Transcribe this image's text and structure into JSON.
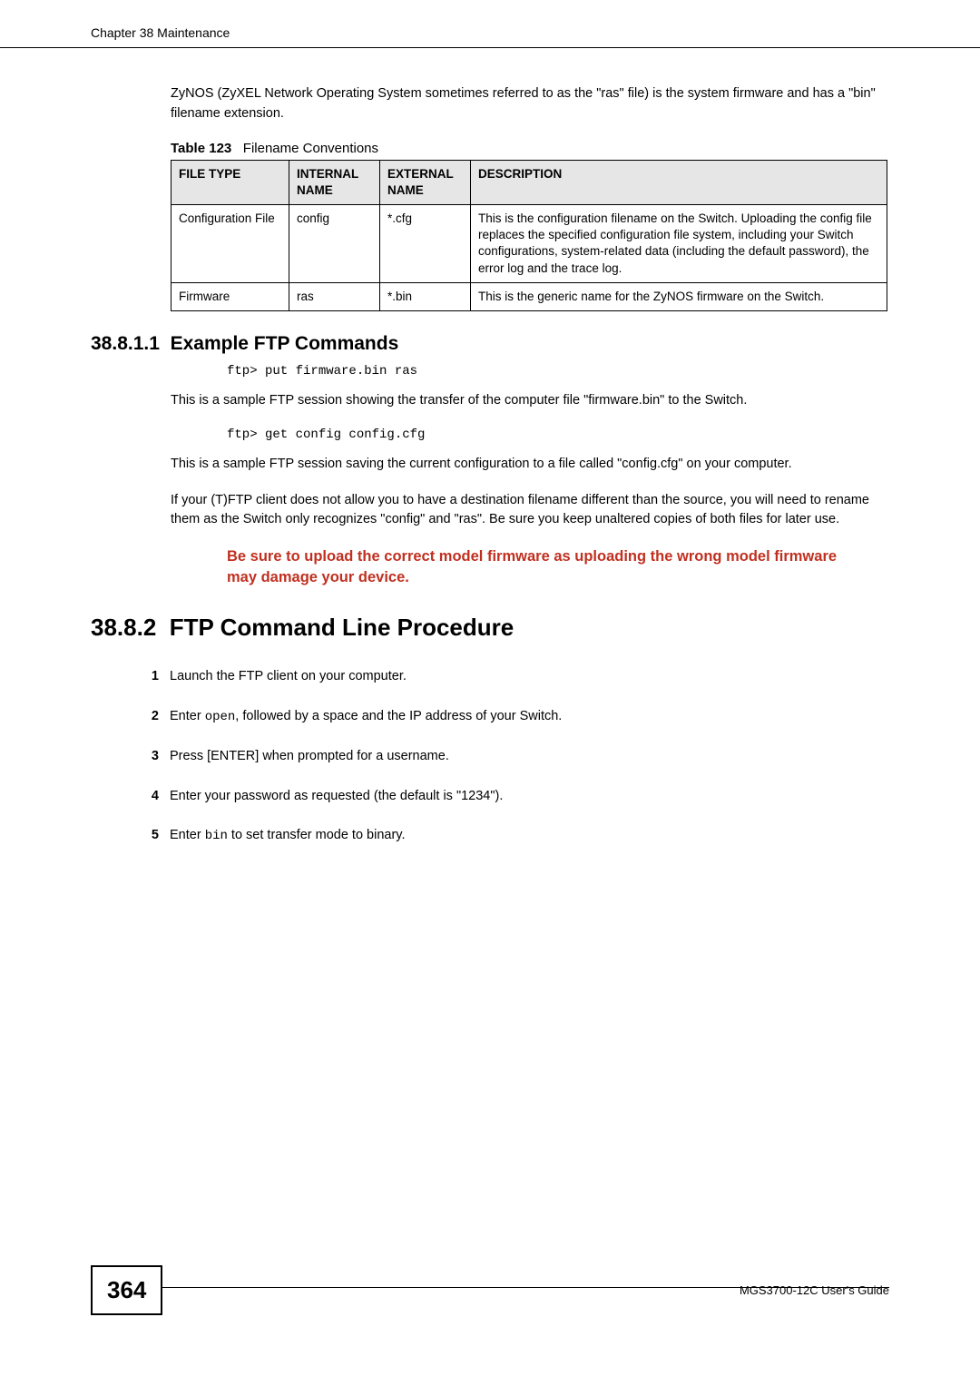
{
  "header": {
    "chapter": "Chapter 38 Maintenance"
  },
  "intro": {
    "text": "ZyNOS (ZyXEL Network Operating System sometimes referred to as the \"ras\" file) is the system firmware and has a \"bin\" filename extension."
  },
  "table_caption": {
    "label": "Table 123",
    "title": "Filename Conventions"
  },
  "table": {
    "headers": {
      "c0": "FILE TYPE",
      "c1": "INTERNAL NAME",
      "c2": "EXTERNAL NAME",
      "c3": "DESCRIPTION"
    },
    "rows": [
      {
        "c0": "Configuration File",
        "c1": "config",
        "c2": "*.cfg",
        "c3": "This is the configuration filename on the Switch. Uploading the config file replaces the specified configuration file system, including your Switch configurations, system-related data (including the default password), the error log and the trace log."
      },
      {
        "c0": "Firmware",
        "c1": "ras",
        "c2": "*.bin",
        "c3": "This is the generic name for the ZyNOS firmware on the Switch."
      }
    ],
    "col_widths": [
      "130px",
      "100px",
      "100px",
      "auto"
    ],
    "header_bg": "#e6e6e6",
    "border_color": "#000000"
  },
  "section_38_8_1_1": {
    "number": "38.8.1.1",
    "title": "Example FTP Commands",
    "code1": "ftp> put firmware.bin ras",
    "para1": "This is a sample FTP session showing the transfer of the computer file \"firmware.bin\" to the Switch.",
    "code2": "ftp> get config config.cfg",
    "para2": "This is a sample FTP session saving the current configuration to a file called \"config.cfg\" on your computer.",
    "para3": "If your (T)FTP client does not allow you to have a destination filename different than the source, you will need to rename them as the Switch only recognizes \"config\" and \"ras\". Be sure you keep unaltered copies of both files for later use.",
    "warning": "Be sure to upload the correct model firmware as uploading the wrong model firmware may damage your device."
  },
  "section_38_8_2": {
    "number": "38.8.2",
    "title": "FTP Command Line Procedure",
    "steps": [
      {
        "text": "Launch the FTP client on your computer."
      },
      {
        "prefix": "Enter ",
        "code": "open",
        "suffix": ", followed by a space and the IP address of your Switch."
      },
      {
        "text": "Press [ENTER] when prompted for a username."
      },
      {
        "text": "Enter your password as requested (the default is \"1234\")."
      },
      {
        "prefix": "Enter ",
        "code": "bin",
        "suffix": " to set transfer mode to binary."
      }
    ]
  },
  "footer": {
    "page_number": "364",
    "guide": "MGS3700-12C User's Guide"
  },
  "colors": {
    "warning": "#c03020",
    "text": "#000000",
    "background": "#ffffff"
  },
  "fonts": {
    "body": "Verdana",
    "heading": "Arial",
    "mono": "Courier New"
  }
}
